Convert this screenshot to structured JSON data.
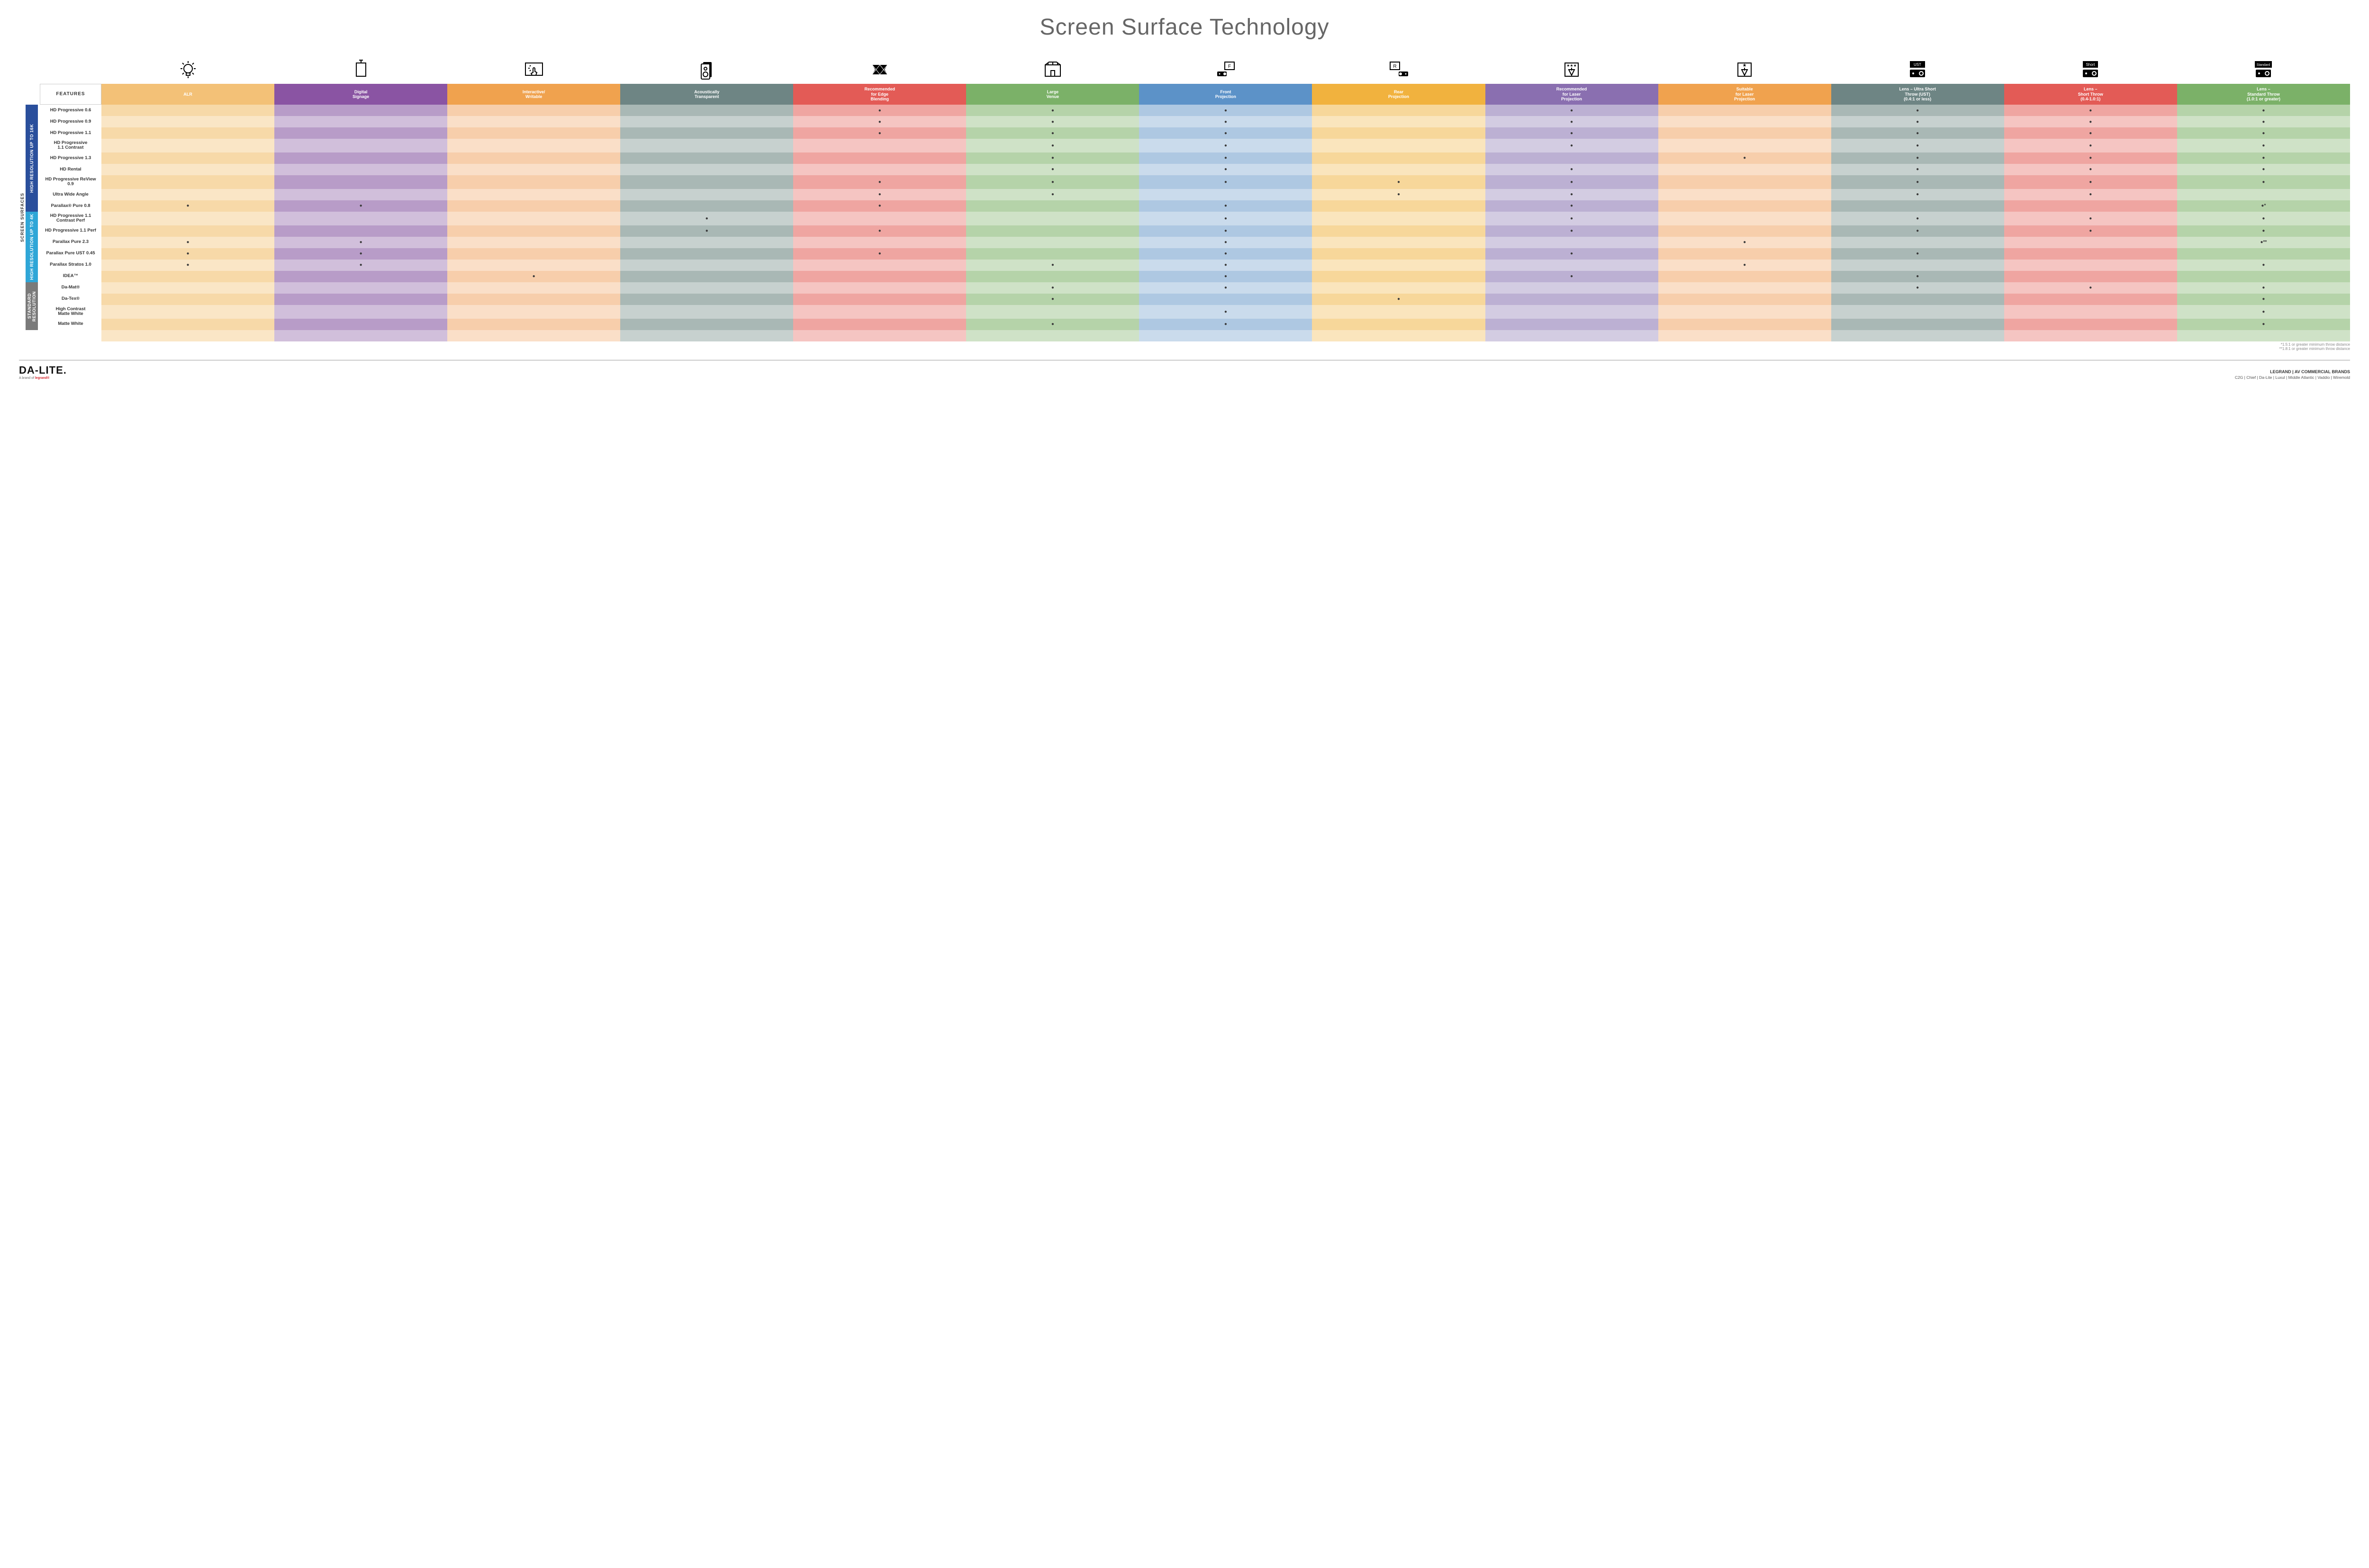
{
  "title": "Screen Surface Technology",
  "columns": [
    {
      "key": "alr",
      "label": "ALR",
      "icon": "bulb",
      "colors": [
        "#f3c177",
        "#f7d9a8"
      ]
    },
    {
      "key": "signage",
      "label": "Digital\nSignage",
      "icon": "signage",
      "colors": [
        "#8a54a3",
        "#b89cc8"
      ]
    },
    {
      "key": "interactive",
      "label": "Interactive/\nWritable",
      "icon": "touch",
      "colors": [
        "#f0a24e",
        "#f7ceab"
      ]
    },
    {
      "key": "acoustic",
      "label": "Acoustically\nTransparent",
      "icon": "speaker",
      "colors": [
        "#6e8584",
        "#a9b8b5"
      ]
    },
    {
      "key": "edge",
      "label": "Recommended\nfor Edge\nBlending",
      "icon": "blend",
      "colors": [
        "#e35b56",
        "#efa5a1"
      ]
    },
    {
      "key": "large",
      "label": "Large\nVenue",
      "icon": "venue",
      "colors": [
        "#7bb168",
        "#b5d3a9"
      ]
    },
    {
      "key": "front",
      "label": "Front\nProjection",
      "icon": "front",
      "colors": [
        "#5c92c8",
        "#aec8e2"
      ]
    },
    {
      "key": "rear",
      "label": "Rear\nProjection",
      "icon": "rear",
      "colors": [
        "#f1b23e",
        "#f7d79a"
      ]
    },
    {
      "key": "reclaser",
      "label": "Recommended\nfor Laser\nProjection",
      "icon": "laser1",
      "colors": [
        "#8a6fb0",
        "#bcb0d3"
      ]
    },
    {
      "key": "suitlaser",
      "label": "Suitable\nfor Laser\nProjection",
      "icon": "laser2",
      "colors": [
        "#f0a24e",
        "#f7ceab"
      ]
    },
    {
      "key": "ust",
      "label": "Lens – Ultra Short\nThrow (UST)\n(0.4:1 or less)",
      "icon": "ust",
      "colors": [
        "#6e8584",
        "#a9b8b5"
      ]
    },
    {
      "key": "short",
      "label": "Lens –\nShort Throw\n(0.4-1.0:1)",
      "icon": "short",
      "colors": [
        "#e35b56",
        "#efa5a1"
      ]
    },
    {
      "key": "std",
      "label": "Lens –\nStandard Throw\n(1.0:1 or greater)",
      "icon": "standard",
      "colors": [
        "#7bb168",
        "#b5d3a9"
      ]
    }
  ],
  "groups": [
    {
      "label": "HIGH RESOLUTION UP TO 16K",
      "color": "#2a4f9c",
      "rows": [
        {
          "label": "HD Progressive 0.6",
          "marks": {
            "edge": "●",
            "large": "●",
            "front": "●",
            "reclaser": "●",
            "ust": "●",
            "short": "●",
            "std": "●"
          }
        },
        {
          "label": "HD Progressive 0.9",
          "marks": {
            "edge": "●",
            "large": "●",
            "front": "●",
            "reclaser": "●",
            "ust": "●",
            "short": "●",
            "std": "●"
          }
        },
        {
          "label": "HD Progressive 1.1",
          "marks": {
            "edge": "●",
            "large": "●",
            "front": "●",
            "reclaser": "●",
            "ust": "●",
            "short": "●",
            "std": "●"
          }
        },
        {
          "label": "HD Progressive\n1.1 Contrast",
          "marks": {
            "large": "●",
            "front": "●",
            "reclaser": "●",
            "ust": "●",
            "short": "●",
            "std": "●"
          }
        },
        {
          "label": "HD Progressive 1.3",
          "marks": {
            "large": "●",
            "front": "●",
            "suitlaser": "●",
            "ust": "●",
            "short": "●",
            "std": "●"
          }
        },
        {
          "label": "HD Rental",
          "marks": {
            "large": "●",
            "front": "●",
            "reclaser": "●",
            "ust": "●",
            "short": "●",
            "std": "●"
          }
        },
        {
          "label": "HD Progressive ReView 0.9",
          "marks": {
            "edge": "●",
            "large": "●",
            "front": "●",
            "rear": "●",
            "reclaser": "●",
            "ust": "●",
            "short": "●",
            "std": "●"
          }
        },
        {
          "label": "Ultra Wide Angle",
          "marks": {
            "edge": "●",
            "large": "●",
            "rear": "●",
            "reclaser": "●",
            "ust": "●",
            "short": "●"
          }
        },
        {
          "label": "Parallax® Pure 0.8",
          "marks": {
            "alr": "●",
            "signage": "●",
            "edge": "●",
            "front": "●",
            "reclaser": "●",
            "std": "●*"
          }
        }
      ]
    },
    {
      "label": "HIGH RESOLUTION UP TO 4K",
      "color": "#2fa6d7",
      "rows": [
        {
          "label": "HD Progressive 1.1\nContrast Perf",
          "marks": {
            "acoustic": "●",
            "front": "●",
            "reclaser": "●",
            "ust": "●",
            "short": "●",
            "std": "●"
          }
        },
        {
          "label": "HD Progressive 1.1 Perf",
          "marks": {
            "acoustic": "●",
            "edge": "●",
            "front": "●",
            "reclaser": "●",
            "ust": "●",
            "short": "●",
            "std": "●"
          }
        },
        {
          "label": "Parallax Pure 2.3",
          "marks": {
            "alr": "●",
            "signage": "●",
            "front": "●",
            "suitlaser": "●",
            "std": "●**"
          }
        },
        {
          "label": "Parallax Pure UST 0.45",
          "marks": {
            "alr": "●",
            "signage": "●",
            "edge": "●",
            "front": "●",
            "reclaser": "●",
            "ust": "●"
          }
        },
        {
          "label": "Parallax Stratos 1.0",
          "marks": {
            "alr": "●",
            "signage": "●",
            "large": "●",
            "front": "●",
            "suitlaser": "●",
            "std": "●"
          }
        },
        {
          "label": "IDEA™",
          "marks": {
            "interactive": "●",
            "front": "●",
            "reclaser": "●",
            "ust": "●"
          }
        }
      ]
    },
    {
      "label": "STANDARD\nRESOLUTION",
      "color": "#7a7a7a",
      "rows": [
        {
          "label": "Da-Mat®",
          "marks": {
            "large": "●",
            "front": "●",
            "ust": "●",
            "short": "●",
            "std": "●"
          }
        },
        {
          "label": "Da-Tex®",
          "marks": {
            "large": "●",
            "rear": "●",
            "std": "●"
          }
        },
        {
          "label": "High Contrast\nMatte White",
          "marks": {
            "front": "●",
            "std": "●"
          }
        },
        {
          "label": "Matte White",
          "marks": {
            "large": "●",
            "front": "●",
            "std": "●"
          }
        }
      ]
    }
  ],
  "sideLabel": "SCREEN SURFACES",
  "featuresLabel": "FEATURES",
  "footnotes": [
    "*1.5:1 or greater minimum throw distance",
    "**1.8:1 or greater minimum throw distance"
  ],
  "footer": {
    "logo": "DA-LITE.",
    "logoSub": "A brand of ",
    "logoSubBrand": "legrand®",
    "right1": "LEGRAND | AV COMMERCIAL BRANDS",
    "right2": "C2G  |  Chief  |  Da-Lite  |  Luxul  |  Middle Atlantic  |  Vaddio  |  Wiremold"
  },
  "iconStroke": "#000",
  "rowLabelWidth": 130
}
